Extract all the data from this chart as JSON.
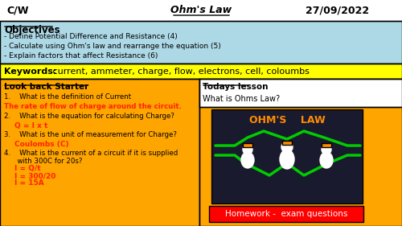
{
  "title_left": "C/W",
  "title_center": "Ohm's Law",
  "title_right": "27/09/2022",
  "objectives_title": "Objectives",
  "objectives": [
    "- Define Potential Difference and Resistance (4)",
    "- Calculate using Ohm's law and rearrange the equation (5)",
    "- Explain factors that affect Resistance (6)"
  ],
  "keywords_label": "Keywords:",
  "keywords_text": " current, ammeter, charge, flow, electrons, cell, coloumbs",
  "starter_title": "Look back Starter",
  "starter_q1": "1.    What is the definition of Current",
  "starter_a1": "The rate of flow of charge around the circuit.",
  "starter_q2": "2.    What is the equation for calculating Charge?",
  "starter_a2": "Q = I x t",
  "starter_q3": "3.    What is the unit of measurement for Charge?",
  "starter_a3": "Coulombs (C)",
  "starter_q4": "4.    What is the current of a circuit if it is supplied\n      with 300C for 20s?",
  "starter_a4_lines": [
    "I = Q/t",
    "I = 300/20",
    "I = 15A"
  ],
  "todays_title": "Todays lesson",
  "todays_text": "What is Ohms Law?",
  "homework_text": "Homework -  exam questions",
  "ohms_law_text": "OHM'S    LAW",
  "bg_header": "#ffffff",
  "bg_objectives": "#add8e6",
  "bg_keywords": "#ffff00",
  "bg_starter": "#ffa500",
  "bg_todays_header": "#ffffff",
  "bg_homework": "#ff0000",
  "bg_image": "#1a1a2e",
  "color_orange": "#ff8c00",
  "color_green": "#00cc00",
  "text_red": "#ff2200",
  "text_black": "#000000",
  "text_white": "#ffffff"
}
